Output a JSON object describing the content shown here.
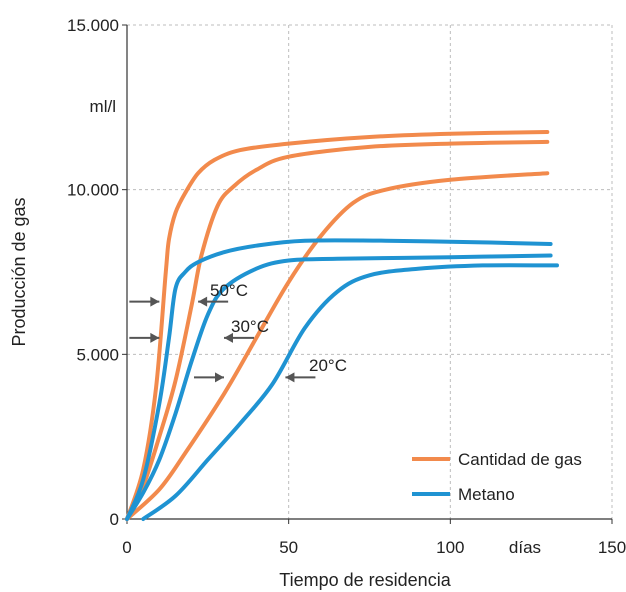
{
  "chart_data": {
    "type": "line",
    "xlabel": "Tiempo de residencia",
    "ylabel": "Producción de gas",
    "x_unit": "días",
    "y_unit": "ml/l",
    "xlim": [
      0,
      150
    ],
    "ylim": [
      0,
      15000
    ],
    "x_ticks": [
      "0",
      "50",
      "100",
      "150"
    ],
    "y_ticks": [
      "0",
      "5.000",
      "10.000",
      "15.000"
    ],
    "grid": true,
    "legend_position": "bottom-right",
    "legend": [
      {
        "label": "Cantidad de gas",
        "color": "#f28a4c"
      },
      {
        "label": "Metano",
        "color": "#1f93d2"
      }
    ],
    "temperature_labels": [
      "50°C",
      "30°C",
      "20°C"
    ],
    "series": [
      {
        "group": "Cantidad de gas",
        "temperature": "50°C",
        "color": "#f28a4c",
        "points": [
          [
            0,
            0
          ],
          [
            5,
            1500
          ],
          [
            9,
            4000
          ],
          [
            12,
            7500
          ],
          [
            13,
            8500
          ],
          [
            15,
            9300
          ],
          [
            18,
            9900
          ],
          [
            22,
            10500
          ],
          [
            27,
            10900
          ],
          [
            35,
            11200
          ],
          [
            50,
            11400
          ],
          [
            75,
            11600
          ],
          [
            100,
            11700
          ],
          [
            130,
            11750
          ]
        ]
      },
      {
        "group": "Cantidad de gas",
        "temperature": "30°C",
        "color": "#f28a4c",
        "points": [
          [
            0,
            0
          ],
          [
            5,
            1000
          ],
          [
            10,
            2500
          ],
          [
            15,
            4200
          ],
          [
            20,
            6500
          ],
          [
            23,
            8000
          ],
          [
            28,
            9500
          ],
          [
            33,
            10100
          ],
          [
            40,
            10600
          ],
          [
            50,
            11000
          ],
          [
            75,
            11300
          ],
          [
            100,
            11400
          ],
          [
            130,
            11450
          ]
        ]
      },
      {
        "group": "Cantidad de gas",
        "temperature": "20°C",
        "color": "#f28a4c",
        "points": [
          [
            0,
            0
          ],
          [
            10,
            900
          ],
          [
            18,
            2000
          ],
          [
            30,
            3800
          ],
          [
            40,
            5500
          ],
          [
            50,
            7200
          ],
          [
            60,
            8600
          ],
          [
            70,
            9600
          ],
          [
            80,
            10000
          ],
          [
            100,
            10300
          ],
          [
            130,
            10500
          ]
        ]
      },
      {
        "group": "Metano",
        "temperature": "50°C",
        "color": "#1f93d2",
        "points": [
          [
            0,
            0
          ],
          [
            5,
            1200
          ],
          [
            10,
            3500
          ],
          [
            13,
            5500
          ],
          [
            15,
            7000
          ],
          [
            18,
            7500
          ],
          [
            22,
            7800
          ],
          [
            30,
            8100
          ],
          [
            40,
            8300
          ],
          [
            55,
            8450
          ],
          [
            80,
            8450
          ],
          [
            110,
            8400
          ],
          [
            131,
            8350
          ]
        ]
      },
      {
        "group": "Metano",
        "temperature": "30°C",
        "color": "#1f93d2",
        "points": [
          [
            0,
            0
          ],
          [
            5,
            800
          ],
          [
            10,
            1800
          ],
          [
            15,
            3200
          ],
          [
            20,
            4800
          ],
          [
            25,
            6200
          ],
          [
            30,
            7000
          ],
          [
            40,
            7600
          ],
          [
            50,
            7850
          ],
          [
            65,
            7900
          ],
          [
            100,
            7950
          ],
          [
            131,
            8000
          ]
        ]
      },
      {
        "group": "Metano",
        "temperature": "20°C",
        "color": "#1f93d2",
        "points": [
          [
            5,
            0
          ],
          [
            15,
            700
          ],
          [
            25,
            1800
          ],
          [
            35,
            2900
          ],
          [
            45,
            4100
          ],
          [
            55,
            5800
          ],
          [
            65,
            6900
          ],
          [
            75,
            7400
          ],
          [
            90,
            7600
          ],
          [
            110,
            7700
          ],
          [
            133,
            7700
          ]
        ]
      }
    ],
    "arrows": [
      {
        "x": 10,
        "y": 6600,
        "dir": "right"
      },
      {
        "x": 22,
        "y": 6600,
        "dir": "left"
      },
      {
        "x": 10,
        "y": 5500,
        "dir": "right"
      },
      {
        "x": 30,
        "y": 5500,
        "dir": "left"
      },
      {
        "x": 30,
        "y": 4300,
        "dir": "right"
      },
      {
        "x": 49,
        "y": 4300,
        "dir": "left"
      }
    ]
  }
}
